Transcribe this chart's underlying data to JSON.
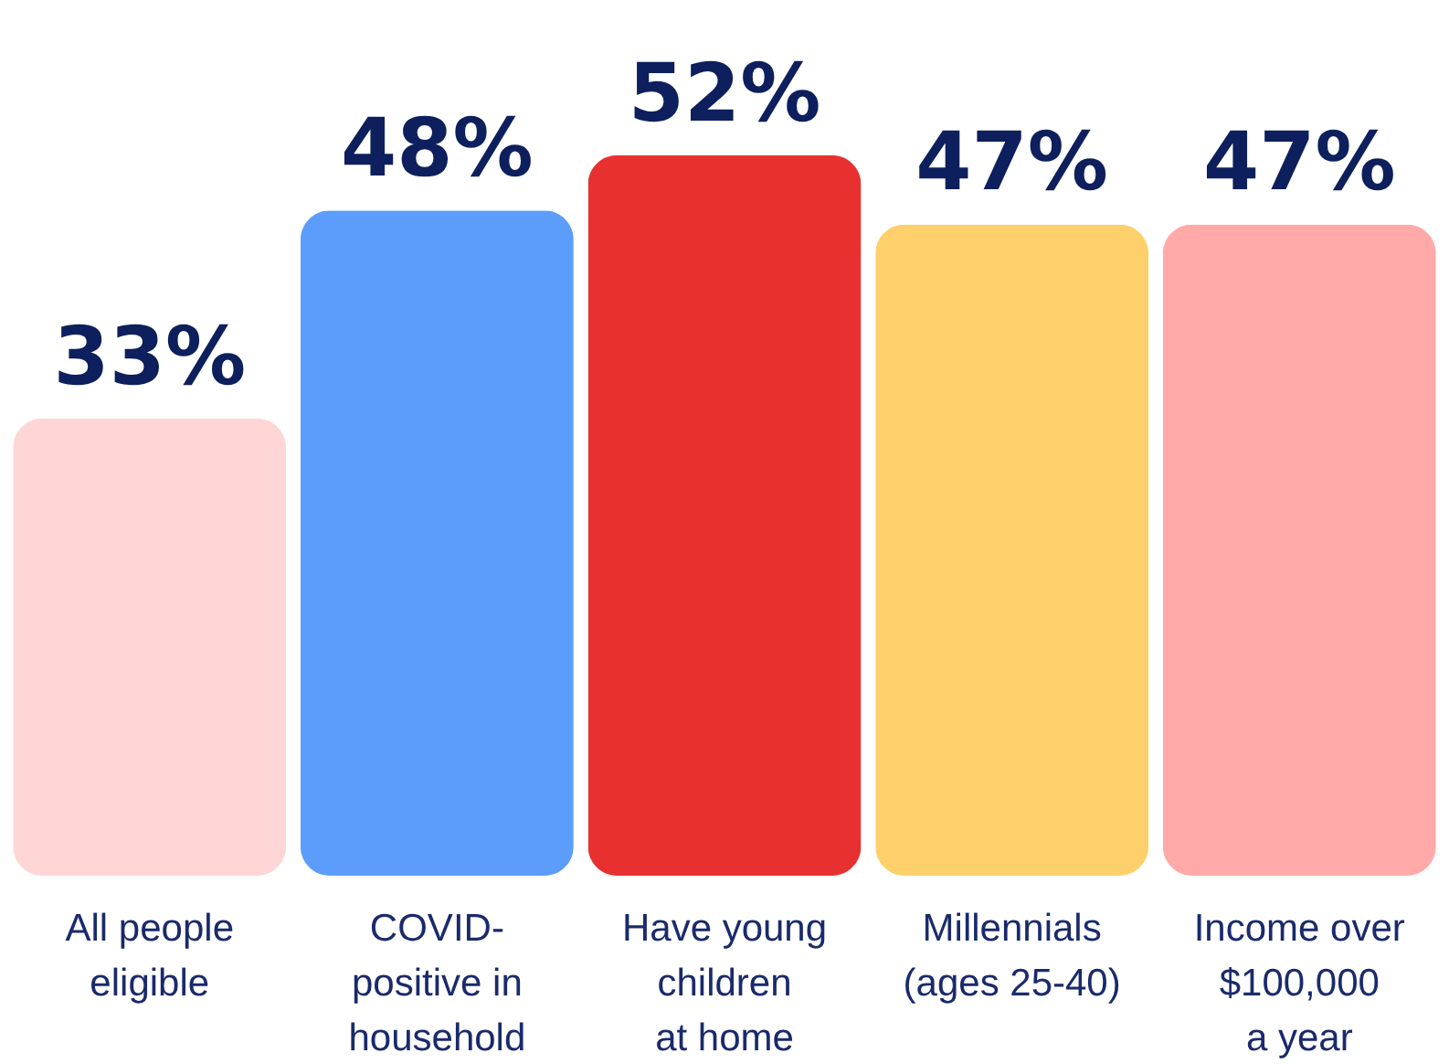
{
  "chart_data": {
    "type": "bar",
    "categories": [
      "All people\neligible",
      "COVID-\npositive in\nhousehold",
      "Have young\nchildren\nat home",
      "Millennials\n(ages 25-40)",
      "Income over\n$100,000\na year"
    ],
    "values": [
      33,
      48,
      52,
      47,
      47
    ],
    "colors": [
      "#ffd6d6",
      "#5c9dfb",
      "#e83030",
      "#fdd06b",
      "#ffaaa8"
    ],
    "value_labels": [
      "33%",
      "48%",
      "52%",
      "47%",
      "47%"
    ]
  }
}
